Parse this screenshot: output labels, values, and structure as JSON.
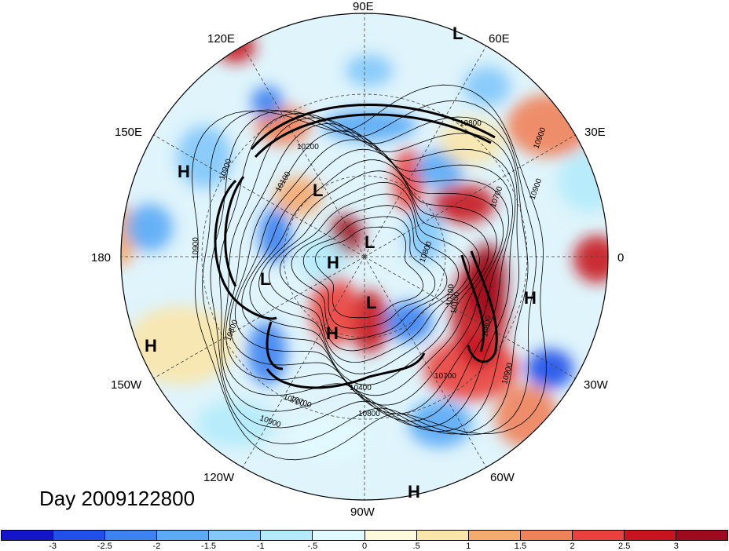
{
  "title": "Day 2009122800",
  "map": {
    "projection": "polar-stereographic-north",
    "longitude_labels": [
      "90E",
      "60E",
      "30E",
      "0",
      "30W",
      "60W",
      "90W",
      "120W",
      "150W",
      "180",
      "150E",
      "120E"
    ],
    "pressure_centers": [
      {
        "type": "L"
      },
      {
        "type": "H"
      },
      {
        "type": "L"
      },
      {
        "type": "L"
      },
      {
        "type": "H"
      },
      {
        "type": "L"
      },
      {
        "type": "H"
      },
      {
        "type": "L"
      },
      {
        "type": "H"
      },
      {
        "type": "H"
      },
      {
        "type": "H"
      }
    ],
    "contour_labels": [
      "10800",
      "10900",
      "10200",
      "10100",
      "10700",
      "10900",
      "10900",
      "10800",
      "10900",
      "10700",
      "10800",
      "10100",
      "10800",
      "10700",
      "10400",
      "10800",
      "10700",
      "10900",
      "10900",
      "10100"
    ],
    "colors": {
      "ocean_base": "#dff4fb",
      "coast": "#000000"
    }
  },
  "colorbar": {
    "tick_labels": [
      "-3",
      "-2.5",
      "-2",
      "-1.5",
      "-1",
      "-.5",
      "0",
      ".5",
      "1",
      "1.5",
      "2",
      "2.5",
      "3"
    ],
    "colors": [
      "#1414c8",
      "#2050e8",
      "#3c82f0",
      "#5aaaf5",
      "#82c8fa",
      "#b4ebfa",
      "#e1faff",
      "#fffadc",
      "#fae6aa",
      "#f5aa6e",
      "#f0825a",
      "#eb413c",
      "#c8141e",
      "#a00a1e"
    ]
  }
}
